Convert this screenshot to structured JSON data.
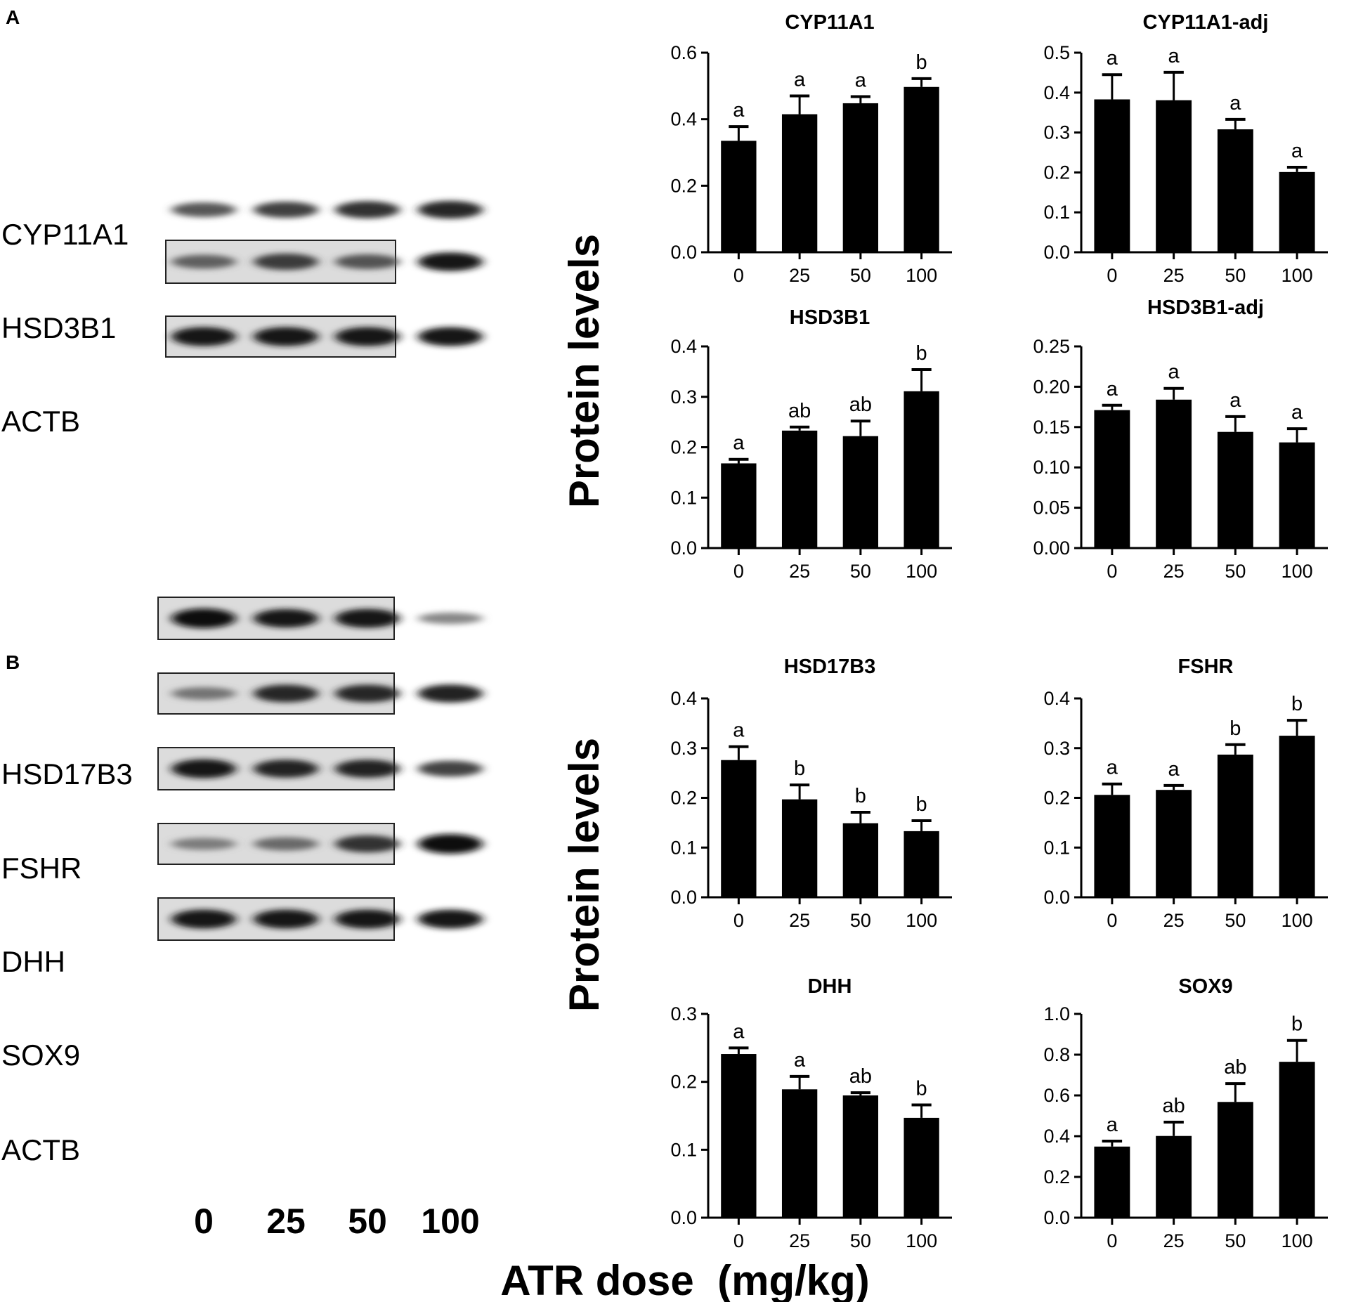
{
  "panels": [
    {
      "label": "A",
      "blot_rows": [
        "CYP11A1",
        "HSD3B1",
        "ACTB"
      ],
      "ylabel": "Protein levels"
    },
    {
      "label": "B",
      "blot_rows": [
        "HSD17B3",
        "FSHR",
        "DHH",
        "SOX9",
        "ACTB"
      ],
      "ylabel": "Protein levels",
      "lane_labels": [
        "0",
        "25",
        "50",
        "100"
      ]
    }
  ],
  "xlabel": "ATR dose  (mg/kg)",
  "blot_intensity": {
    "CYP11A1": [
      0.6,
      0.72,
      0.8,
      0.85
    ],
    "HSD3B1": [
      0.55,
      0.75,
      0.62,
      0.92
    ],
    "ACTB_A": [
      0.95,
      0.95,
      0.95,
      0.95
    ],
    "HSD17B3": [
      1.0,
      0.92,
      0.95,
      0.35
    ],
    "FSHR": [
      0.45,
      0.85,
      0.85,
      0.88
    ],
    "DHH": [
      0.95,
      0.88,
      0.88,
      0.7
    ],
    "SOX9": [
      0.4,
      0.5,
      0.8,
      1.0
    ],
    "ACTB_B": [
      0.95,
      0.95,
      0.95,
      0.95
    ]
  },
  "chart_data": [
    {
      "type": "bar",
      "title": "CYP11A1",
      "categories": [
        "0",
        "25",
        "50",
        "100"
      ],
      "values": [
        0.335,
        0.415,
        0.448,
        0.497
      ],
      "errors": [
        0.043,
        0.055,
        0.02,
        0.025
      ],
      "letters": [
        "a",
        "a",
        "a",
        "b"
      ],
      "ylim": [
        0,
        0.6
      ],
      "yticks": [
        "0.0",
        "0.2",
        "0.4",
        "0.6"
      ]
    },
    {
      "type": "bar",
      "title": "CYP11A1-adj",
      "categories": [
        "0",
        "25",
        "50",
        "100"
      ],
      "values": [
        0.383,
        0.381,
        0.308,
        0.201
      ],
      "errors": [
        0.062,
        0.07,
        0.025,
        0.012
      ],
      "letters": [
        "a",
        "a",
        "a",
        "a"
      ],
      "ylim": [
        0,
        0.5
      ],
      "yticks": [
        "0.0",
        "0.1",
        "0.2",
        "0.3",
        "0.4",
        "0.5"
      ]
    },
    {
      "type": "bar",
      "title": "HSD3B1",
      "categories": [
        "0",
        "25",
        "50",
        "100"
      ],
      "values": [
        0.168,
        0.233,
        0.222,
        0.311
      ],
      "errors": [
        0.008,
        0.007,
        0.03,
        0.043
      ],
      "letters": [
        "a",
        "ab",
        "ab",
        "b"
      ],
      "ylim": [
        0,
        0.4
      ],
      "yticks": [
        "0.0",
        "0.1",
        "0.2",
        "0.3",
        "0.4"
      ]
    },
    {
      "type": "bar",
      "title": "HSD3B1-adj",
      "categories": [
        "0",
        "25",
        "50",
        "100"
      ],
      "values": [
        0.171,
        0.184,
        0.144,
        0.131
      ],
      "errors": [
        0.006,
        0.014,
        0.019,
        0.017
      ],
      "letters": [
        "a",
        "a",
        "a",
        "a"
      ],
      "ylim": [
        0,
        0.25
      ],
      "yticks": [
        "0.00",
        "0.05",
        "0.10",
        "0.15",
        "0.20",
        "0.25"
      ]
    },
    {
      "type": "bar",
      "title": "HSD17B3",
      "categories": [
        "0",
        "25",
        "50",
        "100"
      ],
      "values": [
        0.276,
        0.197,
        0.149,
        0.133
      ],
      "errors": [
        0.027,
        0.029,
        0.022,
        0.021
      ],
      "letters": [
        "a",
        "b",
        "b",
        "b"
      ],
      "ylim": [
        0,
        0.4
      ],
      "yticks": [
        "0.0",
        "0.1",
        "0.2",
        "0.3",
        "0.4"
      ]
    },
    {
      "type": "bar",
      "title": "FSHR",
      "categories": [
        "0",
        "25",
        "50",
        "100"
      ],
      "values": [
        0.206,
        0.216,
        0.287,
        0.325
      ],
      "errors": [
        0.022,
        0.009,
        0.02,
        0.031
      ],
      "letters": [
        "a",
        "a",
        "b",
        "b"
      ],
      "ylim": [
        0,
        0.4
      ],
      "yticks": [
        "0.0",
        "0.1",
        "0.2",
        "0.3",
        "0.4"
      ]
    },
    {
      "type": "bar",
      "title": "DHH",
      "categories": [
        "0",
        "25",
        "50",
        "100"
      ],
      "values": [
        0.241,
        0.189,
        0.18,
        0.147
      ],
      "errors": [
        0.009,
        0.019,
        0.004,
        0.019
      ],
      "letters": [
        "a",
        "a",
        "ab",
        "b"
      ],
      "ylim": [
        0,
        0.3
      ],
      "yticks": [
        "0.0",
        "0.1",
        "0.2",
        "0.3"
      ]
    },
    {
      "type": "bar",
      "title": "SOX9",
      "categories": [
        "0",
        "25",
        "50",
        "100"
      ],
      "values": [
        0.349,
        0.401,
        0.568,
        0.765
      ],
      "errors": [
        0.027,
        0.068,
        0.09,
        0.105
      ],
      "letters": [
        "a",
        "ab",
        "ab",
        "b"
      ],
      "ylim": [
        0,
        1.0
      ],
      "yticks": [
        "0.0",
        "0.2",
        "0.4",
        "0.6",
        "0.8",
        "1.0"
      ]
    }
  ]
}
